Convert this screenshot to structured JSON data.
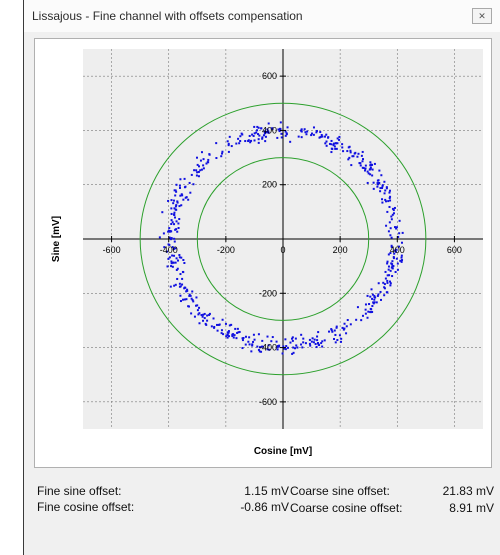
{
  "window": {
    "title": "Lissajous - Fine channel with offsets compensation",
    "close_icon": "close-icon"
  },
  "chart_data": {
    "type": "scatter",
    "title": "",
    "xlabel": "Cosine [mV]",
    "ylabel": "Sine [mV]",
    "xlim": [
      -700,
      700
    ],
    "ylim": [
      -700,
      700
    ],
    "x_ticks": [
      "-600",
      "-400",
      "-200",
      "0",
      "200",
      "400",
      "600"
    ],
    "y_ticks": [
      "600",
      "400",
      "200",
      "0",
      "-200",
      "-400",
      "-600"
    ],
    "grid": true,
    "reference_circles": [
      {
        "radius": 300,
        "color": "#2ca02c"
      },
      {
        "radius": 500,
        "color": "#2ca02c"
      }
    ],
    "series": [
      {
        "marker_color": "#1010e0",
        "points_description": "approximately circular ring of samples around origin",
        "ring_center_radius": 395,
        "ring_spread": 30,
        "point_count": 600
      }
    ]
  },
  "readouts": {
    "fine_sine_label": "Fine sine offset:",
    "fine_sine_value": "1.15 mV",
    "fine_cosine_label": "Fine cosine offset:",
    "fine_cosine_value": "-0.86 mV",
    "coarse_sine_label": "Coarse sine offset:",
    "coarse_sine_value": "21.83 mV",
    "coarse_cosine_label": "Coarse cosine offset:",
    "coarse_cosine_value": "8.91 mV"
  }
}
